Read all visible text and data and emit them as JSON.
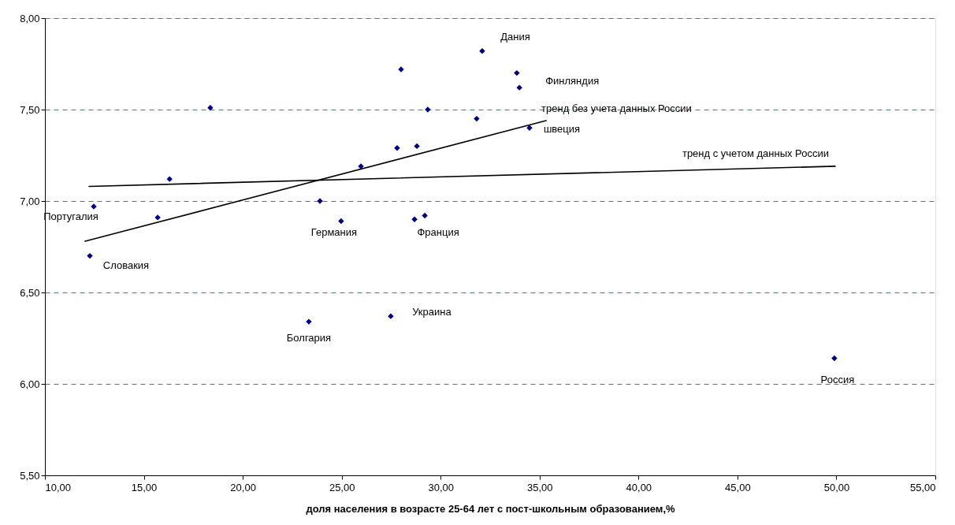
{
  "chart_data": {
    "type": "scatter",
    "xlabel": "доля населения в возрасте 25-64 лет с пост-школьным образованием,%",
    "xlim": [
      10,
      55
    ],
    "ylim": [
      5.5,
      8.0
    ],
    "xticks": [
      {
        "value": 10,
        "label": "10,00"
      },
      {
        "value": 15,
        "label": "15,00"
      },
      {
        "value": 20,
        "label": "20,00"
      },
      {
        "value": 25,
        "label": "25,00"
      },
      {
        "value": 30,
        "label": "30,00"
      },
      {
        "value": 35,
        "label": "35,00"
      },
      {
        "value": 40,
        "label": "40,00"
      },
      {
        "value": 45,
        "label": "45,00"
      },
      {
        "value": 50,
        "label": "50,00"
      },
      {
        "value": 55,
        "label": "55,00"
      }
    ],
    "yticks": [
      {
        "value": 5.5,
        "label": "5,50"
      },
      {
        "value": 6.0,
        "label": "6,00"
      },
      {
        "value": 6.5,
        "label": "6,50"
      },
      {
        "value": 7.0,
        "label": "7,00"
      },
      {
        "value": 7.5,
        "label": "7,50"
      },
      {
        "value": 8.0,
        "label": "8,00"
      }
    ],
    "grid": "y",
    "marker": "diamond",
    "series": [
      {
        "color": "#000080",
        "x": [
          32.1,
          28.0,
          33.85,
          33.98,
          29.35,
          31.82,
          34.49,
          27.8,
          28.8,
          25.97,
          23.9,
          24.97,
          28.68,
          29.2,
          18.36,
          16.3,
          12.47,
          15.7,
          12.27,
          23.34,
          27.48,
          49.9
        ],
        "values": [
          7.82,
          7.72,
          7.7,
          7.62,
          7.5,
          7.45,
          7.4,
          7.29,
          7.3,
          7.19,
          7.0,
          6.89,
          6.9,
          6.92,
          7.51,
          7.12,
          6.97,
          6.91,
          6.7,
          6.34,
          6.37,
          6.14
        ]
      },
      {
        "type": "line",
        "color": "#000000",
        "marker": "none",
        "line_style": "solid",
        "x": [
          12.23,
          49.94
        ],
        "values": [
          7.08,
          7.19
        ]
      },
      {
        "type": "line",
        "color": "#000000",
        "marker": "none",
        "line_style": "solid",
        "x": [
          12.03,
          35.33
        ],
        "values": [
          6.78,
          7.44
        ]
      }
    ],
    "annotations": [
      {
        "text": "Дания",
        "x": 32.1,
        "y": 7.82
      },
      {
        "text": "Финляндия",
        "x": 33.98,
        "y": 7.62
      },
      {
        "text": "швеция",
        "x": 34.49,
        "y": 7.4
      },
      {
        "text": "Португалия",
        "x": 12.47,
        "y": 6.97
      },
      {
        "text": "Словакия",
        "x": 12.27,
        "y": 6.7
      },
      {
        "text": "Германия",
        "x": 24.97,
        "y": 6.89
      },
      {
        "text": "Франция",
        "x": 28.68,
        "y": 6.9
      },
      {
        "text": "Болгария",
        "x": 23.34,
        "y": 6.34
      },
      {
        "text": "Украина",
        "x": 27.48,
        "y": 6.37
      },
      {
        "text": "Россия",
        "x": 49.9,
        "y": 6.14
      },
      {
        "text": "тренд без учета данных России",
        "x": 35.33,
        "y": 7.44
      },
      {
        "text": "тренд с учетом данных России",
        "x": 49.94,
        "y": 7.19
      }
    ]
  }
}
